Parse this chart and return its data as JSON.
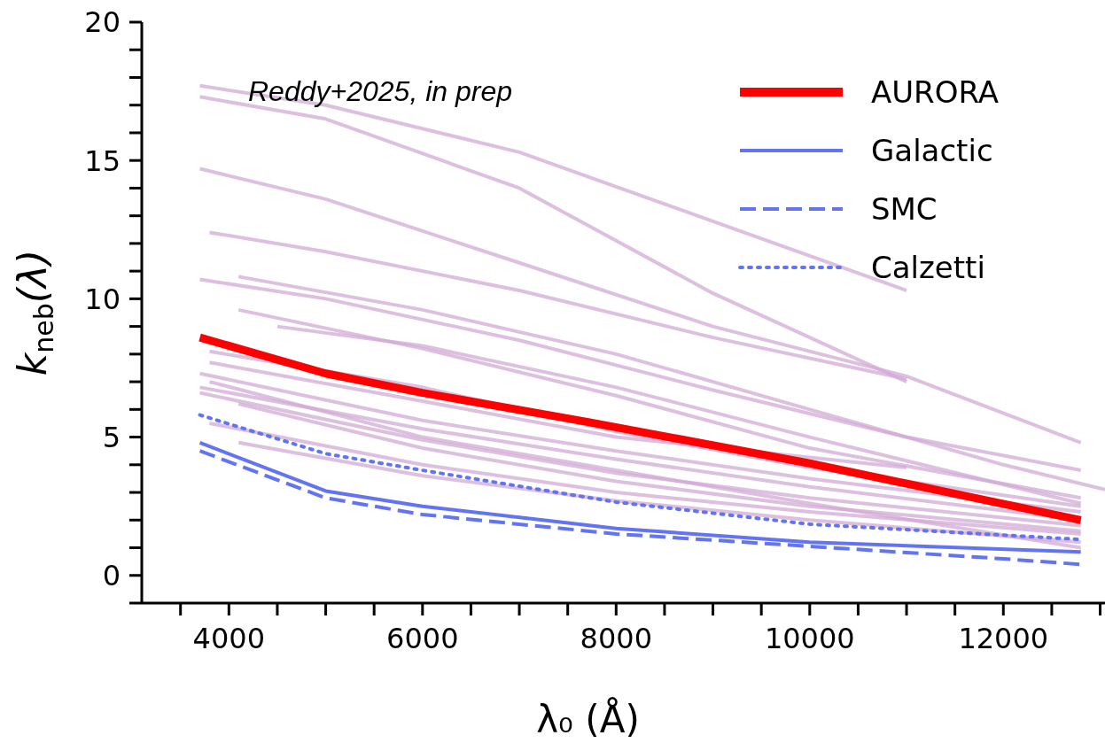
{
  "chart_data": {
    "type": "line",
    "xlabel": "λ₀ (Å)",
    "ylabel": "k$_{neb}$(λ)",
    "annotations": [
      "Reddy+2025, in prep"
    ],
    "legend": "top right",
    "marker": "none",
    "xlim": [
      3100,
      13050
    ],
    "ylim": [
      -1,
      20
    ],
    "xticks": [
      {
        "value": 3500,
        "label": null
      },
      4000,
      {
        "value": 4500,
        "label": null
      },
      {
        "value": 5000,
        "label": null
      },
      {
        "value": 5500,
        "label": null
      },
      6000,
      {
        "value": 6500,
        "label": null
      },
      {
        "value": 7000,
        "label": null
      },
      {
        "value": 7500,
        "label": null
      },
      8000,
      {
        "value": 8500,
        "label": null
      },
      {
        "value": 9000,
        "label": null
      },
      {
        "value": 9500,
        "label": null
      },
      10000,
      {
        "value": 10500,
        "label": null
      },
      {
        "value": 11000,
        "label": null
      },
      {
        "value": 11500,
        "label": null
      },
      12000,
      {
        "value": 12500,
        "label": null
      },
      {
        "value": 13000,
        "label": null
      }
    ],
    "yticks": [
      {
        "value": -1,
        "label": null
      },
      0,
      {
        "value": 1,
        "label": null
      },
      {
        "value": 2,
        "label": null
      },
      {
        "value": 3,
        "label": null
      },
      {
        "value": 4,
        "label": null
      },
      5,
      {
        "value": 6,
        "label": null
      },
      {
        "value": 7,
        "label": null
      },
      {
        "value": 8,
        "label": null
      },
      {
        "value": 9,
        "label": null
      },
      10,
      {
        "value": 11,
        "label": null
      },
      {
        "value": 12,
        "label": null
      },
      {
        "value": 13,
        "label": null
      },
      {
        "value": 14,
        "label": null
      },
      15,
      {
        "value": 16,
        "label": null
      },
      {
        "value": 17,
        "label": null
      },
      {
        "value": 18,
        "label": null
      },
      {
        "value": 19,
        "label": null
      },
      20
    ],
    "series": [
      {
        "color": "#d1aad6",
        "x": [
          3700,
          5000,
          7000,
          9000,
          11000
        ],
        "values": [
          17.7,
          17.0,
          15.3,
          12.8,
          10.3
        ]
      },
      {
        "color": "#d1aad6",
        "x": [
          3700,
          5000,
          7000,
          9000,
          11000
        ],
        "values": [
          17.3,
          16.5,
          14.0,
          10.2,
          7.0
        ]
      },
      {
        "color": "#d1aad6",
        "x": [
          3700,
          5000,
          7000,
          9000,
          11000,
          12800
        ],
        "values": [
          14.7,
          13.6,
          11.3,
          9.0,
          7.2,
          4.8
        ]
      },
      {
        "color": "#d1aad6",
        "x": [
          3800,
          5000,
          7000,
          9000,
          11000
        ],
        "values": [
          12.4,
          11.7,
          10.3,
          8.6,
          7.1
        ]
      },
      {
        "color": "#d1aad6",
        "x": [
          3700,
          5000,
          7000,
          9000,
          11000,
          12800
        ],
        "values": [
          10.7,
          10.0,
          8.5,
          6.7,
          5.0,
          3.8
        ]
      },
      {
        "color": "#d1aad6",
        "x": [
          4100,
          6000,
          8000,
          10000,
          12000,
          13050
        ],
        "values": [
          10.8,
          9.6,
          8.0,
          6.0,
          4.0,
          3.1
        ]
      },
      {
        "color": "#d1aad6",
        "x": [
          4100,
          6000,
          8000,
          10000,
          12800
        ],
        "values": [
          9.6,
          8.2,
          6.5,
          4.6,
          2.8
        ]
      },
      {
        "color": "#d1aad6",
        "x": [
          4500,
          6000,
          8000,
          10000,
          12800
        ],
        "values": [
          9.0,
          8.3,
          6.8,
          5.0,
          2.6
        ]
      },
      {
        "color": "#d1aad6",
        "x": [
          3800,
          6000,
          8000,
          10000,
          12800
        ],
        "values": [
          8.1,
          6.8,
          5.2,
          3.9,
          2.5
        ]
      },
      {
        "color": "#d1aad6",
        "x": [
          3800,
          6000,
          8000,
          11000
        ],
        "values": [
          7.7,
          6.3,
          5.0,
          3.9
        ]
      },
      {
        "color": "#d1aad6",
        "x": [
          3700,
          6000,
          8000,
          10000,
          12800
        ],
        "values": [
          7.3,
          5.6,
          4.5,
          3.5,
          2.3
        ]
      },
      {
        "color": "#d1aad6",
        "x": [
          3700,
          6000,
          8000,
          10000,
          12800
        ],
        "values": [
          6.8,
          5.3,
          4.2,
          3.2,
          2.0
        ]
      },
      {
        "color": "#d1aad6",
        "x": [
          3700,
          6000,
          8000,
          10000,
          12800
        ],
        "values": [
          6.6,
          4.9,
          3.7,
          2.8,
          1.8
        ]
      },
      {
        "color": "#d1aad6",
        "x": [
          4100,
          6000,
          8000,
          10000,
          12800
        ],
        "values": [
          6.2,
          4.6,
          3.4,
          2.5,
          1.6
        ]
      },
      {
        "color": "#d1aad6",
        "x": [
          3800,
          6000,
          8000,
          10000,
          12800
        ],
        "values": [
          5.5,
          4.0,
          3.0,
          2.3,
          1.5
        ]
      },
      {
        "color": "#d1aad6",
        "x": [
          4100,
          6000,
          8000,
          10000,
          12800
        ],
        "values": [
          4.8,
          3.6,
          2.7,
          2.0,
          1.2
        ]
      },
      {
        "color": "#d1aad6",
        "x": [
          3800,
          6000,
          8000,
          10000,
          12800
        ],
        "values": [
          7.0,
          5.0,
          3.8,
          2.6,
          1.0
        ]
      },
      {
        "name": "AURORA",
        "color": "#ff0000",
        "line_style": "solid",
        "x": [
          3700,
          5000,
          6000,
          7700,
          10000,
          12800
        ],
        "values": [
          8.6,
          7.3,
          6.6,
          5.55,
          4.05,
          2.0
        ]
      },
      {
        "name": "Galactic",
        "color": "#6374f2",
        "line_style": "solid",
        "x": [
          3700,
          5000,
          6000,
          8000,
          10000,
          12800
        ],
        "values": [
          4.8,
          3.05,
          2.5,
          1.7,
          1.2,
          0.85
        ]
      },
      {
        "name": "SMC",
        "color": "#6374f2",
        "line_style": "dashed",
        "x": [
          3700,
          5000,
          6000,
          8000,
          10000,
          12000,
          12800
        ],
        "values": [
          4.5,
          2.8,
          2.2,
          1.5,
          1.05,
          0.6,
          0.4
        ]
      },
      {
        "name": "Calzetti",
        "color": "#6374f2",
        "line_style": "dotted",
        "x": [
          3700,
          5000,
          6000,
          8000,
          10000,
          12800
        ],
        "values": [
          5.8,
          4.4,
          3.8,
          2.65,
          1.85,
          1.3
        ]
      }
    ]
  }
}
